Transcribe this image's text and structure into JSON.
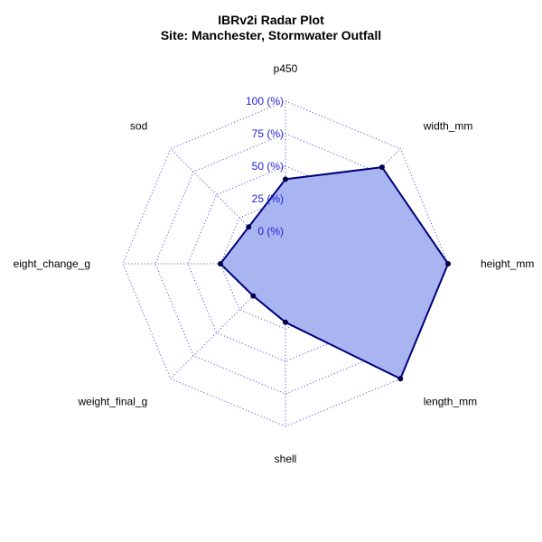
{
  "chart_data": {
    "type": "radar",
    "title": "IBRv2i Radar Plot",
    "subtitle": "Site: Manchester, Stormwater Outfall",
    "axes": [
      "p450",
      "width_mm",
      "height_mm",
      "length_mm",
      "shell",
      "weight_final_g",
      "eight_change_g",
      "sod"
    ],
    "tick_labels": [
      "0 (%)",
      "25 (%)",
      "50 (%)",
      "75 (%)",
      "100 (%)"
    ],
    "scale": [
      0,
      100
    ],
    "series": [
      {
        "values": [
          40,
          80,
          100,
          100,
          20,
          10,
          25,
          15
        ]
      }
    ],
    "grid": true,
    "colors": {
      "fill": "#a8b5f0",
      "line": "#00007a",
      "point": "#00004a",
      "grid": "#5a5ae0",
      "tick_text": "#1f1fd6"
    }
  }
}
